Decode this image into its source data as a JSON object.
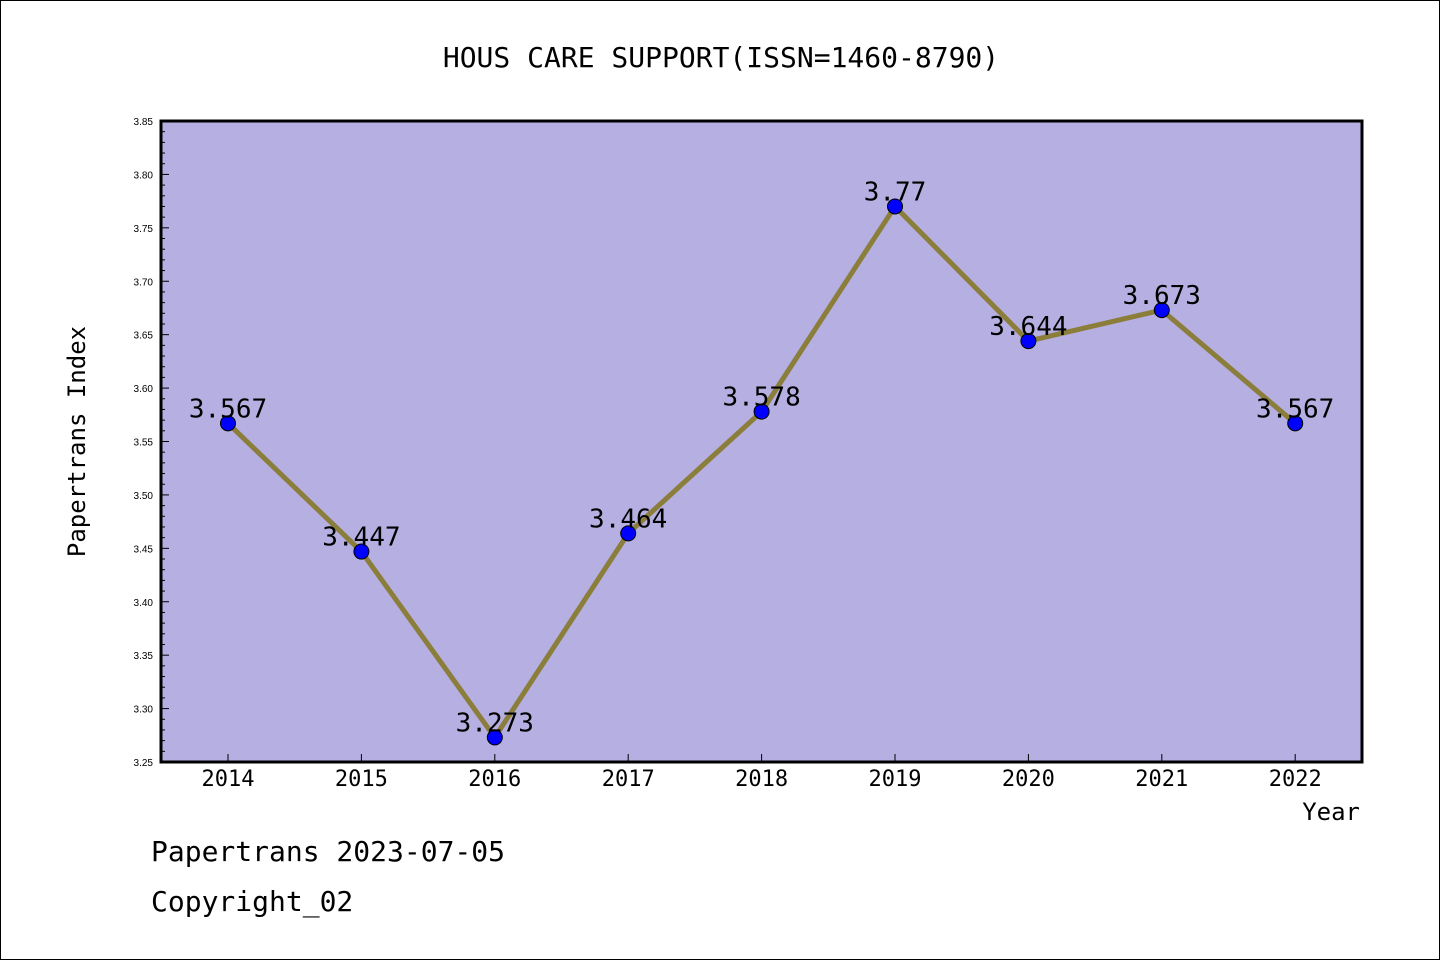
{
  "chart_data": {
    "type": "line",
    "title": "HOUS CARE SUPPORT(ISSN=1460-8790)",
    "xlabel": "Year",
    "ylabel": "Papertrans Index",
    "categories": [
      "2014",
      "2015",
      "2016",
      "2017",
      "2018",
      "2019",
      "2020",
      "2021",
      "2022"
    ],
    "series": [
      {
        "values": [
          3.567,
          3.447,
          3.273,
          3.464,
          3.578,
          3.77,
          3.644,
          3.673,
          3.567
        ],
        "data_labels": [
          "3.567",
          "3.447",
          "3.273",
          "3.464",
          "3.578",
          "3.77",
          "3.644",
          "3.673",
          "3.567"
        ],
        "line_color": "#8b7d3a",
        "marker_color": "#0000ff"
      }
    ],
    "ylim": [
      3.25,
      3.85
    ],
    "yticks": [
      "3.25",
      "3.30",
      "3.35",
      "3.40",
      "3.45",
      "3.50",
      "3.55",
      "3.60",
      "3.65",
      "3.70",
      "3.75",
      "3.80",
      "3.85"
    ],
    "plot_background": "#b5afe2",
    "grid": false,
    "legend": "none"
  },
  "footer": {
    "line1": "Papertrans 2023-07-05",
    "line2": "Copyright_02"
  }
}
